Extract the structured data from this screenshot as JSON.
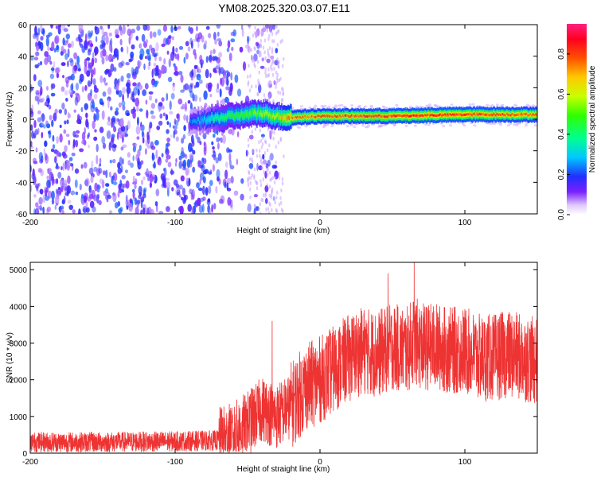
{
  "title": "YM08.2025.320.03.07.E11",
  "chart_data": [
    {
      "type": "heatmap",
      "name": "spectrogram",
      "xlabel": "Height of straight line (km)",
      "ylabel": "Frequency (Hz)",
      "xlim": [
        -200,
        150
      ],
      "ylim": [
        -60,
        60
      ],
      "xticks": [
        -200,
        -100,
        0,
        100
      ],
      "yticks": [
        -60,
        -40,
        -20,
        0,
        20,
        40,
        60
      ],
      "colorbar": {
        "label": "Normalized spectral amplitude",
        "range": [
          0,
          0.95
        ],
        "ticks": [
          0.0,
          0.2,
          0.4,
          0.6,
          0.8
        ]
      },
      "band": {
        "description": "narrow high-amplitude band near 0 Hz",
        "x": [
          -90,
          -70,
          -50,
          -40,
          -30,
          -20,
          0,
          50,
          100,
          150
        ],
        "center_hz": [
          -2,
          1,
          3,
          4,
          2,
          1,
          2,
          2,
          3,
          3
        ],
        "amplitude": [
          0.25,
          0.45,
          0.55,
          0.6,
          0.65,
          0.85,
          0.85,
          0.9,
          0.9,
          0.85
        ]
      },
      "noise_region": {
        "x_from": -200,
        "x_to": -60,
        "amplitude": 0.2
      }
    },
    {
      "type": "line",
      "name": "snr",
      "xlabel": "Height of straight line (km)",
      "ylabel": "SNR (10 * v/v)",
      "xlim": [
        -200,
        150
      ],
      "ylim": [
        0,
        5200
      ],
      "xticks": [
        -200,
        -100,
        0,
        100
      ],
      "yticks": [
        0,
        1000,
        2000,
        3000,
        4000,
        5000
      ],
      "series": [
        {
          "name": "SNR",
          "color": "#ee3333",
          "trend_x": [
            -200,
            -150,
            -100,
            -70,
            -60,
            -50,
            -40,
            -30,
            -20,
            -10,
            0,
            10,
            20,
            30,
            40,
            50,
            60,
            65,
            70,
            80,
            90,
            100,
            110,
            120,
            130,
            140,
            150
          ],
          "trend_y": [
            300,
            300,
            320,
            350,
            500,
            800,
            1200,
            1000,
            1300,
            1800,
            2000,
            2300,
            2600,
            2800,
            2700,
            2900,
            2800,
            3100,
            2900,
            2900,
            2800,
            2800,
            2600,
            2600,
            2700,
            2600,
            2500
          ],
          "peaks": [
            {
              "x": 65,
              "y": 5200
            },
            {
              "x": 47,
              "y": 4900
            },
            {
              "x": -33,
              "y": 3600
            }
          ]
        }
      ]
    }
  ]
}
